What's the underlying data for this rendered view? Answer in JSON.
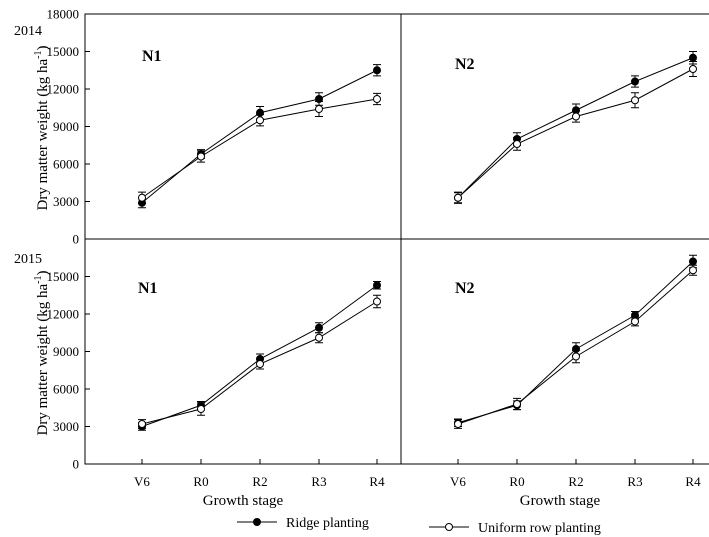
{
  "chart_data": {
    "type": "line",
    "categories": [
      "V6",
      "R0",
      "R2",
      "R3",
      "R4"
    ],
    "ylim": [
      0,
      18000
    ],
    "yticks": [
      0,
      3000,
      6000,
      9000,
      12000,
      15000,
      18000
    ],
    "ylabel_2014": "Dry matter weight (kg ha",
    "ylabel_2015": "Dry matter weight (kg ha",
    "ylabel_sup": "-1",
    "ylabel_close": ")",
    "xlabel": "Growth stage",
    "years": [
      "2014",
      "2015"
    ],
    "series_names": [
      "Ridge planting",
      "Uniform row planting"
    ],
    "series_colors": [
      "#000000",
      "#ffffff"
    ],
    "panels": [
      {
        "label": "N1",
        "year": "2014",
        "series": [
          {
            "name": "Ridge planting",
            "values": [
              2900,
              6800,
              10100,
              11200,
              13500
            ],
            "errors": [
              400,
              350,
              500,
              500,
              450
            ]
          },
          {
            "name": "Uniform row planting",
            "values": [
              3300,
              6600,
              9500,
              10400,
              11200
            ],
            "errors": [
              450,
              450,
              450,
              600,
              450
            ]
          }
        ]
      },
      {
        "label": "N2",
        "year": "2014",
        "series": [
          {
            "name": "Ridge planting",
            "values": [
              3300,
              8000,
              10300,
              12600,
              14500
            ],
            "errors": [
              400,
              500,
              500,
              450,
              500
            ]
          },
          {
            "name": "Uniform row planting",
            "values": [
              3300,
              7600,
              9800,
              11100,
              13600
            ],
            "errors": [
              450,
              500,
              450,
              600,
              600
            ]
          }
        ]
      },
      {
        "label": "N1",
        "year": "2015",
        "series": [
          {
            "name": "Ridge planting",
            "values": [
              3000,
              4700,
              8400,
              10900,
              14300
            ],
            "errors": [
              300,
              300,
              400,
              400,
              300
            ]
          },
          {
            "name": "Uniform row planting",
            "values": [
              3200,
              4400,
              8000,
              10100,
              13000
            ],
            "errors": [
              350,
              500,
              400,
              400,
              500
            ]
          }
        ]
      },
      {
        "label": "N2",
        "year": "2015",
        "series": [
          {
            "name": "Ridge planting",
            "values": [
              3300,
              4700,
              9200,
              11900,
              16200
            ],
            "errors": [
              300,
              350,
              500,
              300,
              500
            ]
          },
          {
            "name": "Uniform row planting",
            "values": [
              3200,
              4800,
              8600,
              11400,
              15500
            ],
            "errors": [
              350,
              450,
              500,
              350,
              400
            ]
          }
        ]
      }
    ],
    "grid": false,
    "legend_position": "bottom"
  }
}
